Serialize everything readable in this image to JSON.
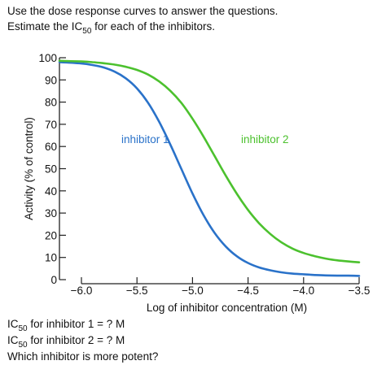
{
  "header": {
    "line1": "Use the dose response curves to answer the questions.",
    "line2_prefix": "Estimate the  IC",
    "line2_sub": "50",
    "line2_suffix": "  for each of the inhibitors."
  },
  "questions": [
    {
      "prefix": "IC",
      "sub": "50",
      "suffix": "  for inhibitor 1 = ? M"
    },
    {
      "prefix": "IC",
      "sub": "50",
      "suffix": "  for inhibitor 2 = ? M"
    },
    {
      "text": "Which inhibitor is more potent?"
    }
  ],
  "chart_data": {
    "type": "line",
    "title": "",
    "xlabel": "Log of inhibitor concentration (M)",
    "ylabel": "Activity (% of control)",
    "xlim": [
      -6.0,
      -3.5
    ],
    "ylim": [
      0,
      100
    ],
    "xticks": [
      -6.0,
      -5.5,
      -5.0,
      -4.5,
      -4.0,
      -3.5
    ],
    "xtick_labels": [
      "−6.0",
      "−5.5",
      "−5.0",
      "−4.5",
      "−4.0",
      "−3.5"
    ],
    "yticks": [
      0,
      10,
      20,
      30,
      40,
      50,
      60,
      70,
      80,
      90,
      100
    ],
    "ytick_labels": [
      "0",
      "10",
      "20",
      "30",
      "40",
      "50",
      "60",
      "70",
      "80",
      "90",
      "100"
    ],
    "grid": false,
    "series": [
      {
        "name": "inhibitor 1",
        "color": "#2a72c9",
        "x": [
          -6.2,
          -6.0,
          -5.9,
          -5.8,
          -5.7,
          -5.6,
          -5.5,
          -5.4,
          -5.3,
          -5.2,
          -5.1,
          -5.0,
          -4.9,
          -4.8,
          -4.7,
          -4.6,
          -4.5,
          -4.4,
          -4.3,
          -4.2,
          -4.1,
          -4.0,
          -3.9,
          -3.8,
          -3.7,
          -3.6,
          -3.5
        ],
        "values": [
          98,
          97.4,
          96.7,
          95.6,
          93.7,
          90.7,
          86.2,
          79.7,
          71.1,
          60.9,
          49.8,
          38.8,
          29.0,
          21.0,
          14.9,
          10.5,
          7.5,
          5.5,
          4.2,
          3.3,
          2.7,
          2.4,
          2.1,
          1.9,
          1.8,
          1.8,
          1.7
        ]
      },
      {
        "name": "inhibitor 2",
        "color": "#4cc12e",
        "x": [
          -6.2,
          -6.0,
          -5.9,
          -5.8,
          -5.7,
          -5.6,
          -5.5,
          -5.4,
          -5.3,
          -5.2,
          -5.1,
          -5.0,
          -4.9,
          -4.8,
          -4.7,
          -4.6,
          -4.5,
          -4.4,
          -4.3,
          -4.2,
          -4.1,
          -4.0,
          -3.9,
          -3.8,
          -3.7,
          -3.6,
          -3.5
        ],
        "values": [
          98.6,
          98.3,
          98.0,
          97.5,
          96.9,
          95.9,
          94.5,
          92.4,
          89.3,
          85.1,
          79.6,
          72.5,
          64.4,
          55.6,
          46.8,
          38.6,
          31.4,
          25.4,
          20.6,
          16.8,
          14.0,
          12.0,
          10.6,
          9.5,
          8.7,
          8.2,
          7.8
        ]
      }
    ]
  }
}
